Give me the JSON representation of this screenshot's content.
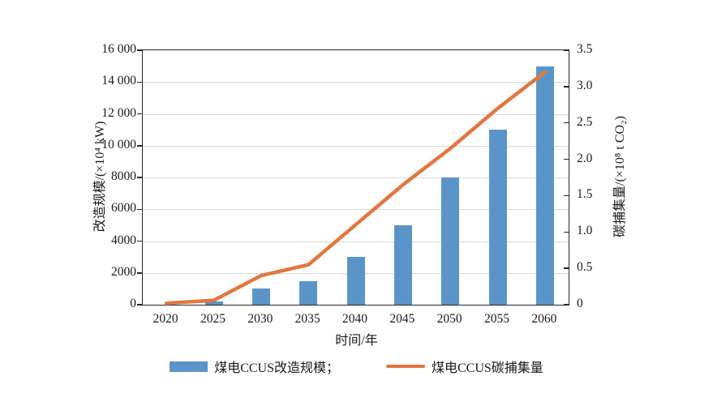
{
  "chart_data": {
    "type": "bar",
    "title": "",
    "categories": [
      "2020",
      "2025",
      "2030",
      "2035",
      "2040",
      "2045",
      "2050",
      "2055",
      "2060"
    ],
    "series": [
      {
        "name": "煤电CCUS改造规模",
        "type": "bar",
        "axis": "left",
        "color": "#5b94c9",
        "values": [
          0,
          200,
          1000,
          1500,
          3000,
          5000,
          8000,
          11000,
          15000
        ]
      },
      {
        "name": "煤电CCUS碳捕集量",
        "type": "line",
        "axis": "right",
        "color": "#e3773f",
        "values": [
          0.02,
          0.06,
          0.4,
          0.55,
          1.1,
          1.65,
          2.15,
          2.7,
          3.2
        ]
      }
    ],
    "xlabel": "时间/年",
    "left_axis": {
      "label": "改造规模/(×10⁴ kW)",
      "min": 0,
      "max": 16000,
      "tick_step": 2000,
      "tick_labels": [
        "0",
        "2000",
        "4000",
        "6000",
        "8000",
        "10 000",
        "12 000",
        "14 000",
        "16 000"
      ]
    },
    "right_axis": {
      "label": "碳捕集量/(×10⁸ t CO₂)",
      "min": 0,
      "max": 3.5,
      "tick_step": 0.5,
      "tick_labels": [
        "0",
        "0.5",
        "1.0",
        "1.5",
        "2.0",
        "2.5",
        "3.0",
        "3.5"
      ]
    },
    "grid": true,
    "legend_position": "bottom",
    "legend": [
      {
        "label": "煤电CCUS改造规模；",
        "swatch": "bar",
        "color": "#5b94c9"
      },
      {
        "label": "煤电CCUS碳捕集量",
        "swatch": "line",
        "color": "#e3773f"
      }
    ]
  }
}
